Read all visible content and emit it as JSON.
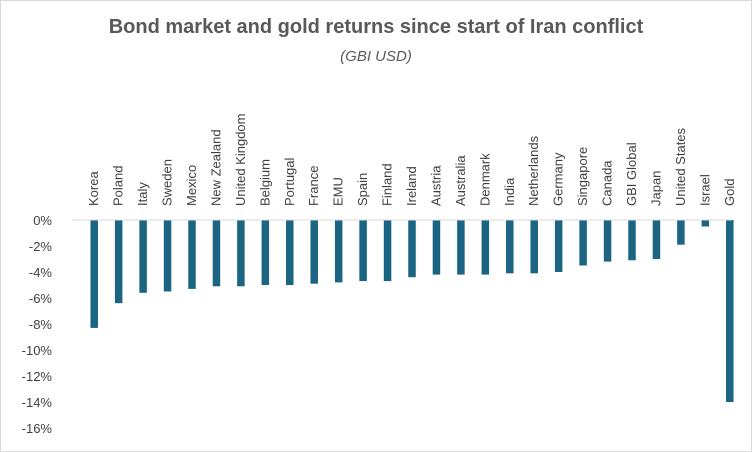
{
  "chart_data": {
    "type": "bar",
    "title": "Bond market and gold returns since start of Iran conflict",
    "subtitle": "(GBI USD)",
    "xlabel": "",
    "ylabel": "",
    "ylim": [
      -16,
      0
    ],
    "ytick_step": 2,
    "ytick_suffix": "%",
    "grid": false,
    "bar_color": "#1b6482",
    "categories": [
      "Korea",
      "Poland",
      "Italy",
      "Sweden",
      "Mexico",
      "New Zealand",
      "United Kingdom",
      "Belgium",
      "Portugal",
      "France",
      "EMU",
      "Spain",
      "Finland",
      "Ireland",
      "Austria",
      "Australia",
      "Denmark",
      "India",
      "Netherlands",
      "Germany",
      "Singapore",
      "Canada",
      "GBI Global",
      "Japan",
      "United States",
      "Israel",
      "Gold"
    ],
    "values": [
      -8.3,
      -6.4,
      -5.6,
      -5.5,
      -5.3,
      -5.1,
      -5.1,
      -5.0,
      -5.0,
      -4.9,
      -4.8,
      -4.7,
      -4.7,
      -4.4,
      -4.2,
      -4.2,
      -4.2,
      -4.1,
      -4.1,
      -4.0,
      -3.5,
      -3.2,
      -3.1,
      -3.0,
      -1.9,
      -0.5,
      -14.0
    ]
  }
}
